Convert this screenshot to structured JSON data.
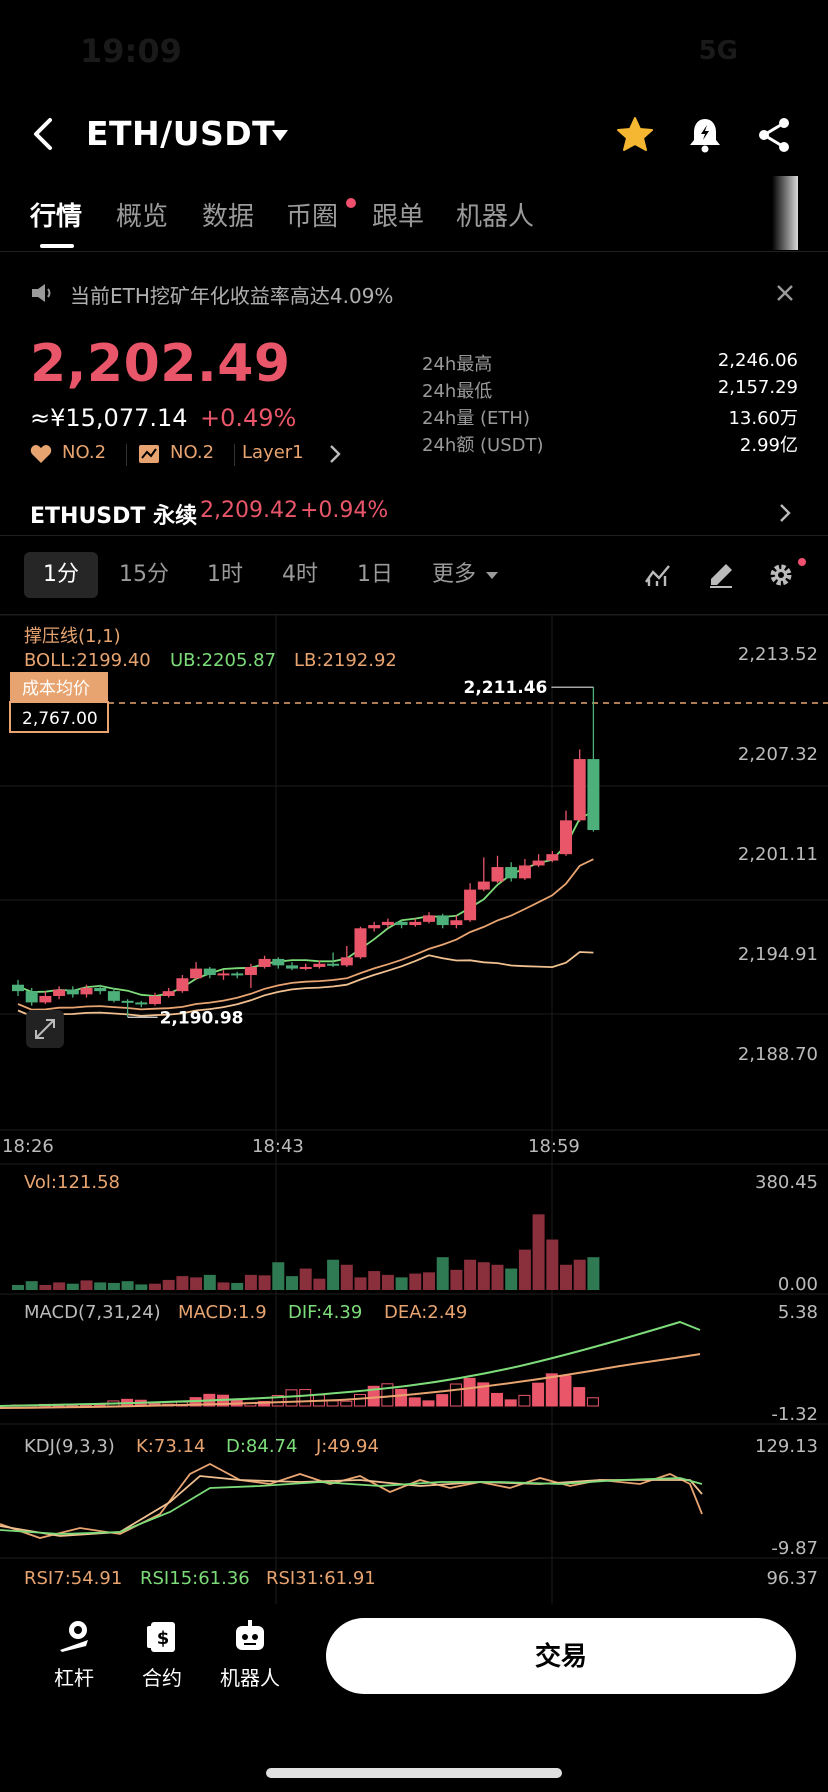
{
  "status": {
    "time": "19:09",
    "signal": "5G"
  },
  "header": {
    "title": "ETH/USDT"
  },
  "tabs": [
    "行情",
    "概览",
    "数据",
    "币圈",
    "跟单",
    "机器人"
  ],
  "notice": {
    "text": "当前ETH挖矿年化收益率高达4.09%"
  },
  "price": {
    "last": "2,202.49",
    "cny": "≈¥15,077.14",
    "change": "+0.49%",
    "tags": [
      "NO.2",
      "NO.2",
      "Layer1"
    ]
  },
  "stats": [
    {
      "label": "24h最高",
      "value": "2,246.06"
    },
    {
      "label": "24h最低",
      "value": "2,157.29"
    },
    {
      "label": "24h量 (ETH)",
      "value": "13.60万"
    },
    {
      "label": "24h额 (USDT)",
      "value": "2.99亿"
    }
  ],
  "perpetual": {
    "label": "ETHUSDT 永续",
    "price": "2,209.42",
    "change": "+0.94%"
  },
  "intervals": [
    "1分",
    "15分",
    "1时",
    "4时",
    "1日",
    "更多"
  ],
  "colors": {
    "up": "#e9566a",
    "down": "#4db07a",
    "accent": "#e8a470",
    "bg": "#000000"
  },
  "chart_data": {
    "type": "candlestick",
    "overlay": {
      "title": "撑压线(1,1)",
      "boll": "BOLL:2199.40",
      "ub": "UB:2205.87",
      "lb": "LB:2192.92",
      "cost_label": "成本均价",
      "cost_value": "2,767.00"
    },
    "yticks": [
      "2,213.52",
      "2,207.32",
      "2,201.11",
      "2,194.91",
      "2,188.70"
    ],
    "ylim": [
      2188.7,
      2213.52
    ],
    "xticks": [
      "18:26",
      "18:43",
      "18:59"
    ],
    "high_label": "2,211.46",
    "high": 2211.46,
    "low_label": "2,190.98",
    "low": 2190.98,
    "candles": [
      {
        "o": 2193.0,
        "c": 2192.6,
        "h": 2193.3,
        "l": 2192.3
      },
      {
        "o": 2192.6,
        "c": 2191.9,
        "h": 2192.8,
        "l": 2191.7
      },
      {
        "o": 2191.9,
        "c": 2192.3,
        "h": 2192.6,
        "l": 2191.8
      },
      {
        "o": 2192.3,
        "c": 2192.7,
        "h": 2192.9,
        "l": 2192.1
      },
      {
        "o": 2192.7,
        "c": 2192.4,
        "h": 2192.9,
        "l": 2192.2
      },
      {
        "o": 2192.4,
        "c": 2192.8,
        "h": 2193.0,
        "l": 2192.2
      },
      {
        "o": 2192.8,
        "c": 2192.6,
        "h": 2193.0,
        "l": 2192.4
      },
      {
        "o": 2192.6,
        "c": 2192.0,
        "h": 2192.8,
        "l": 2191.9
      },
      {
        "o": 2192.0,
        "c": 2191.9,
        "h": 2192.1,
        "l": 2191.0
      },
      {
        "o": 2191.9,
        "c": 2191.8,
        "h": 2192.0,
        "l": 2191.6
      },
      {
        "o": 2191.8,
        "c": 2192.3,
        "h": 2192.5,
        "l": 2191.7
      },
      {
        "o": 2192.3,
        "c": 2192.6,
        "h": 2192.8,
        "l": 2192.2
      },
      {
        "o": 2192.6,
        "c": 2193.4,
        "h": 2193.6,
        "l": 2192.5
      },
      {
        "o": 2193.4,
        "c": 2194.0,
        "h": 2194.4,
        "l": 2193.3
      },
      {
        "o": 2194.0,
        "c": 2193.6,
        "h": 2194.1,
        "l": 2193.4
      },
      {
        "o": 2193.6,
        "c": 2193.7,
        "h": 2193.9,
        "l": 2193.3
      },
      {
        "o": 2193.7,
        "c": 2193.6,
        "h": 2193.8,
        "l": 2193.4
      },
      {
        "o": 2193.6,
        "c": 2194.1,
        "h": 2194.3,
        "l": 2192.8
      },
      {
        "o": 2194.1,
        "c": 2194.6,
        "h": 2194.8,
        "l": 2194.0
      },
      {
        "o": 2194.6,
        "c": 2194.2,
        "h": 2194.7,
        "l": 2194.0
      },
      {
        "o": 2194.2,
        "c": 2194.0,
        "h": 2194.4,
        "l": 2193.9
      },
      {
        "o": 2194.0,
        "c": 2194.1,
        "h": 2194.3,
        "l": 2193.9
      },
      {
        "o": 2194.1,
        "c": 2194.3,
        "h": 2194.5,
        "l": 2194.0
      },
      {
        "o": 2194.3,
        "c": 2194.2,
        "h": 2195.0,
        "l": 2194.1
      },
      {
        "o": 2194.2,
        "c": 2194.7,
        "h": 2195.4,
        "l": 2194.1
      },
      {
        "o": 2194.7,
        "c": 2196.5,
        "h": 2196.6,
        "l": 2194.6
      },
      {
        "o": 2196.5,
        "c": 2196.7,
        "h": 2196.9,
        "l": 2196.3
      },
      {
        "o": 2196.7,
        "c": 2196.9,
        "h": 2197.1,
        "l": 2196.5
      },
      {
        "o": 2196.9,
        "c": 2196.7,
        "h": 2197.0,
        "l": 2196.5
      },
      {
        "o": 2196.7,
        "c": 2196.9,
        "h": 2197.1,
        "l": 2196.6
      },
      {
        "o": 2196.9,
        "c": 2197.3,
        "h": 2197.5,
        "l": 2196.8
      },
      {
        "o": 2197.3,
        "c": 2196.7,
        "h": 2197.4,
        "l": 2196.5
      },
      {
        "o": 2196.7,
        "c": 2197.0,
        "h": 2197.3,
        "l": 2196.5
      },
      {
        "o": 2197.0,
        "c": 2198.9,
        "h": 2199.3,
        "l": 2196.9
      },
      {
        "o": 2198.9,
        "c": 2199.4,
        "h": 2200.9,
        "l": 2198.8
      },
      {
        "o": 2199.4,
        "c": 2200.3,
        "h": 2201.0,
        "l": 2199.3
      },
      {
        "o": 2200.3,
        "c": 2199.6,
        "h": 2200.6,
        "l": 2199.4
      },
      {
        "o": 2199.6,
        "c": 2200.4,
        "h": 2200.8,
        "l": 2199.5
      },
      {
        "o": 2200.4,
        "c": 2200.7,
        "h": 2201.1,
        "l": 2200.3
      },
      {
        "o": 2200.7,
        "c": 2201.1,
        "h": 2201.3,
        "l": 2200.6
      },
      {
        "o": 2201.1,
        "c": 2203.2,
        "h": 2203.8,
        "l": 2201.0
      },
      {
        "o": 2203.2,
        "c": 2207.0,
        "h": 2207.6,
        "l": 2203.1
      },
      {
        "o": 2207.0,
        "c": 2202.6,
        "h": 2211.46,
        "l": 2202.5
      }
    ],
    "volume": {
      "label": "Vol:121.58",
      "yticks": [
        "380.45",
        "0.00"
      ],
      "ylim": [
        0,
        380.45
      ],
      "values": [
        20,
        35,
        20,
        30,
        25,
        38,
        30,
        28,
        35,
        22,
        25,
        40,
        55,
        50,
        60,
        30,
        28,
        60,
        58,
        110,
        55,
        85,
        45,
        120,
        100,
        50,
        75,
        60,
        50,
        65,
        70,
        130,
        80,
        120,
        110,
        100,
        85,
        160,
        300,
        200,
        100,
        120,
        130
      ]
    },
    "macd": {
      "label": "MACD(7,31,24)",
      "macd": "MACD:1.9",
      "dif": "DIF:4.39",
      "dea": "DEA:2.49",
      "yticks": [
        "5.38",
        "-1.32"
      ],
      "ylim": [
        -1.32,
        5.38
      ]
    },
    "kdj": {
      "label": "KDJ(9,3,3)",
      "k": "K:73.14",
      "d": "D:84.74",
      "j": "J:49.94",
      "yticks": [
        "129.13",
        "-9.87"
      ],
      "ylim": [
        -9.87,
        129.13
      ]
    },
    "rsi": {
      "rsi7": "RSI7:54.91",
      "rsi15": "RSI15:61.36",
      "rsi31": "RSI31:61.91",
      "ytick": "96.37"
    }
  },
  "bottombar": {
    "items": [
      "杠杆",
      "合约",
      "机器人"
    ],
    "trade": "交易"
  }
}
